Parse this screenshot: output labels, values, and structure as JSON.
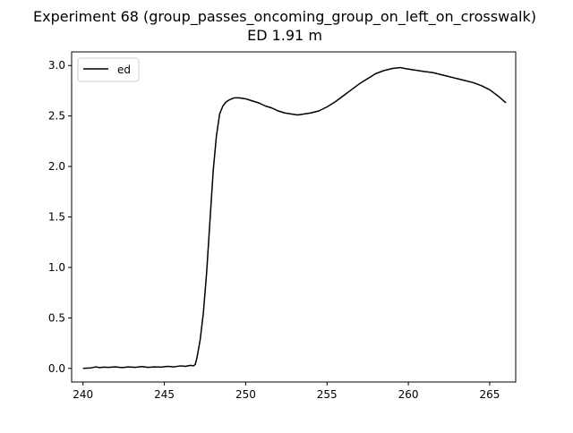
{
  "chart_data": {
    "type": "line",
    "title": "Experiment 68 (group_passes_oncoming_group_on_left_on_crosswalk)",
    "subtitle": "ED 1.91 m",
    "xlabel": "",
    "ylabel": "",
    "xlim": [
      239.3,
      266.6
    ],
    "ylim": [
      -0.135,
      3.135
    ],
    "x_ticks": [
      240,
      245,
      250,
      255,
      260,
      265
    ],
    "x_tick_labels": [
      "240",
      "245",
      "250",
      "255",
      "260",
      "265"
    ],
    "y_ticks": [
      0.0,
      0.5,
      1.0,
      1.5,
      2.0,
      2.5,
      3.0
    ],
    "y_tick_labels": [
      "0.0",
      "0.5",
      "1.0",
      "1.5",
      "2.0",
      "2.5",
      "3.0"
    ],
    "grid": false,
    "legend_placement": "upper-left",
    "series": [
      {
        "name": "ed",
        "color": "#000000",
        "x": [
          240.0,
          240.5,
          240.8,
          241.0,
          241.3,
          241.6,
          242.0,
          242.4,
          242.8,
          243.2,
          243.6,
          244.0,
          244.4,
          244.8,
          245.2,
          245.6,
          246.0,
          246.3,
          246.6,
          246.8,
          246.9,
          247.0,
          247.2,
          247.4,
          247.6,
          247.8,
          248.0,
          248.2,
          248.4,
          248.6,
          248.8,
          249.0,
          249.3,
          249.6,
          250.0,
          250.4,
          250.8,
          251.2,
          251.6,
          252.0,
          252.4,
          252.8,
          253.2,
          253.6,
          254.0,
          254.5,
          255.0,
          255.5,
          256.0,
          256.5,
          257.0,
          257.5,
          258.0,
          258.5,
          259.0,
          259.5,
          259.8,
          260.2,
          260.6,
          261.0,
          261.5,
          262.0,
          262.5,
          263.0,
          263.5,
          264.0,
          264.5,
          265.0,
          265.5,
          266.0
        ],
        "values": [
          0.0,
          0.005,
          0.015,
          0.008,
          0.012,
          0.01,
          0.015,
          0.008,
          0.015,
          0.01,
          0.018,
          0.01,
          0.015,
          0.012,
          0.02,
          0.015,
          0.025,
          0.02,
          0.03,
          0.025,
          0.04,
          0.1,
          0.28,
          0.55,
          0.95,
          1.45,
          1.95,
          2.3,
          2.52,
          2.6,
          2.64,
          2.66,
          2.68,
          2.68,
          2.67,
          2.65,
          2.63,
          2.6,
          2.58,
          2.55,
          2.53,
          2.52,
          2.51,
          2.52,
          2.53,
          2.55,
          2.59,
          2.64,
          2.7,
          2.76,
          2.82,
          2.87,
          2.92,
          2.95,
          2.97,
          2.98,
          2.97,
          2.96,
          2.95,
          2.94,
          2.93,
          2.91,
          2.89,
          2.87,
          2.85,
          2.83,
          2.8,
          2.76,
          2.7,
          2.63
        ]
      }
    ]
  }
}
